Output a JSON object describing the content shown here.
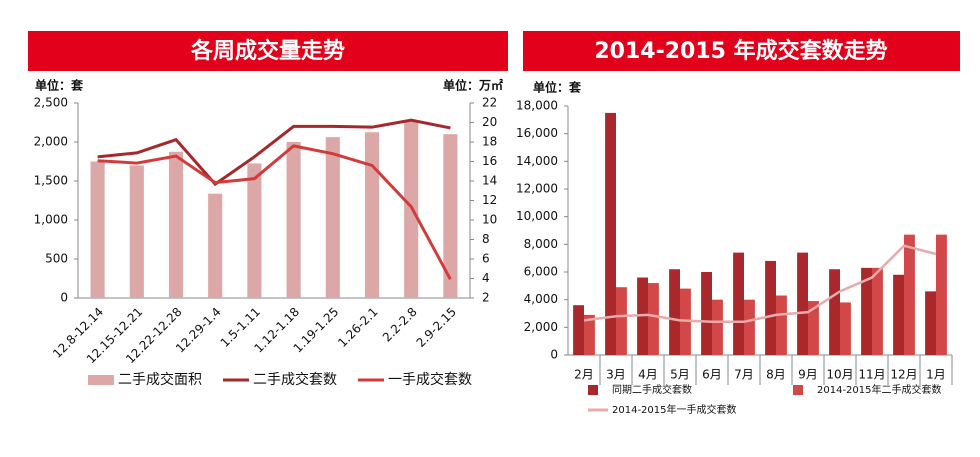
{
  "chart_data": [
    {
      "type": "combo",
      "title": "各周成交量走势",
      "y_unit": "单位：套",
      "y2_unit": "单位：万㎡",
      "categories": [
        "12.8-12.14",
        "12.15-12.21",
        "12.22-12.28",
        "12.29-1.4",
        "1.5-1.11",
        "1.12-1.18",
        "1.19-1.25",
        "1.26-2.1",
        "2.2-2.8",
        "2.9-2.15"
      ],
      "ylim": [
        0,
        2500
      ],
      "yticks": [
        0,
        500,
        {
          "value": 1000,
          "label": "1,000"
        },
        {
          "value": 1500,
          "label": "1,500"
        },
        {
          "value": 2000,
          "label": "2,000"
        },
        {
          "value": 2500,
          "label": "2,500"
        }
      ],
      "y2lim": [
        2,
        22
      ],
      "y2ticks": [
        2,
        4,
        6,
        8,
        10,
        12,
        14,
        16,
        18,
        20,
        22
      ],
      "series": [
        {
          "name": "二手成交面积",
          "type": "bar",
          "axis": "y2",
          "color": "#dba7a7",
          "values": [
            16,
            15.6,
            17,
            12.7,
            15.8,
            18,
            18.5,
            19,
            20.2,
            18.8
          ]
        },
        {
          "name": "二手成交套数",
          "type": "line",
          "color": "#a5282c",
          "values": [
            1810,
            1860,
            2030,
            1460,
            1810,
            2200,
            2200,
            2190,
            2280,
            2180
          ]
        },
        {
          "name": "一手成交套数",
          "type": "line",
          "color": "#d43a3a",
          "values": [
            1760,
            1730,
            1820,
            1480,
            1530,
            1950,
            1850,
            1700,
            1170,
            240
          ]
        }
      ]
    },
    {
      "type": "combo",
      "title": "2014-2015 年成交套数走势",
      "y_unit": "单位：套",
      "categories": [
        "2月",
        "3月",
        "4月",
        "5月",
        "6月",
        "7月",
        "8月",
        "9月",
        "10月",
        "11月",
        "12月",
        "1月"
      ],
      "ylim": [
        0,
        18000
      ],
      "yticks": [
        0,
        {
          "value": 2000,
          "label": "2,000"
        },
        {
          "value": 4000,
          "label": "4,000"
        },
        {
          "value": 6000,
          "label": "6,000"
        },
        {
          "value": 8000,
          "label": "8,000"
        },
        {
          "value": 10000,
          "label": "10,000"
        },
        {
          "value": 12000,
          "label": "12,000"
        },
        {
          "value": 14000,
          "label": "14,000"
        },
        {
          "value": 16000,
          "label": "16,000"
        },
        {
          "value": 18000,
          "label": "18,000"
        }
      ],
      "series": [
        {
          "name": "同期二手成交套数",
          "type": "bar",
          "color": "#a8282c",
          "values": [
            3600,
            17500,
            5600,
            6200,
            6000,
            7400,
            6800,
            7400,
            6200,
            6300,
            5800,
            4600
          ]
        },
        {
          "name": "2014-2015年二手成交套数",
          "type": "bar",
          "color": "#d24848",
          "values": [
            2900,
            4900,
            5200,
            4800,
            4000,
            4000,
            4300,
            3900,
            3800,
            6300,
            8700,
            8700
          ]
        },
        {
          "name": "2014-2015年一手成交套数",
          "type": "line",
          "color": "#e8aaaa",
          "values": [
            2500,
            2800,
            2900,
            2500,
            2400,
            2400,
            2900,
            3100,
            4600,
            5600,
            7900,
            7300
          ]
        }
      ]
    }
  ]
}
